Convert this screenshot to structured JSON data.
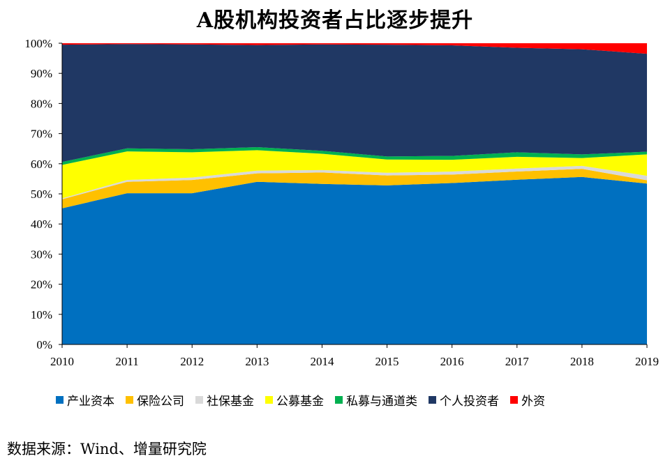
{
  "chart_data": {
    "type": "area",
    "stacked": true,
    "title": "A股机构投资者占比逐步提升",
    "xlabel": "",
    "ylabel": "",
    "x": [
      "2010",
      "2011",
      "2012",
      "2013",
      "2014",
      "2015",
      "2016",
      "2017",
      "2018",
      "2019"
    ],
    "ylim": [
      0,
      100
    ],
    "yticks": [
      "0%",
      "10%",
      "20%",
      "30%",
      "40%",
      "50%",
      "60%",
      "70%",
      "80%",
      "90%",
      "100%"
    ],
    "grid": false,
    "legend_position": "bottom",
    "series": [
      {
        "name": "产业资本",
        "color": "#0070C0",
        "values": [
          45.2,
          50.2,
          50.2,
          54.0,
          53.3,
          52.8,
          53.6,
          54.7,
          55.6,
          53.4
        ]
      },
      {
        "name": "保险公司",
        "color": "#FFC000",
        "values": [
          3.0,
          3.8,
          4.4,
          2.8,
          3.8,
          3.3,
          2.8,
          2.7,
          2.7,
          1.1
        ]
      },
      {
        "name": "社保基金",
        "color": "#D9D9D9",
        "values": [
          0.3,
          0.6,
          0.8,
          0.9,
          0.8,
          0.9,
          1.0,
          1.0,
          1.0,
          1.5
        ]
      },
      {
        "name": "公募基金",
        "color": "#FFFF00",
        "values": [
          11.1,
          9.5,
          8.4,
          6.8,
          5.4,
          4.4,
          3.9,
          3.9,
          2.6,
          7.1
        ]
      },
      {
        "name": "私募与通道类",
        "color": "#00B050",
        "values": [
          1.0,
          1.0,
          1.0,
          1.0,
          1.0,
          1.0,
          1.3,
          1.5,
          1.2,
          0.9
        ]
      },
      {
        "name": "个人投资者",
        "color": "#203864",
        "values": [
          38.9,
          34.6,
          34.8,
          33.9,
          35.3,
          37.1,
          36.7,
          34.7,
          34.9,
          32.5
        ]
      },
      {
        "name": "外资",
        "color": "#FF0000",
        "values": [
          0.5,
          0.3,
          0.4,
          0.6,
          0.4,
          0.5,
          0.7,
          1.5,
          2.0,
          3.5
        ]
      }
    ]
  },
  "source": "数据来源：Wind、增量研究院"
}
